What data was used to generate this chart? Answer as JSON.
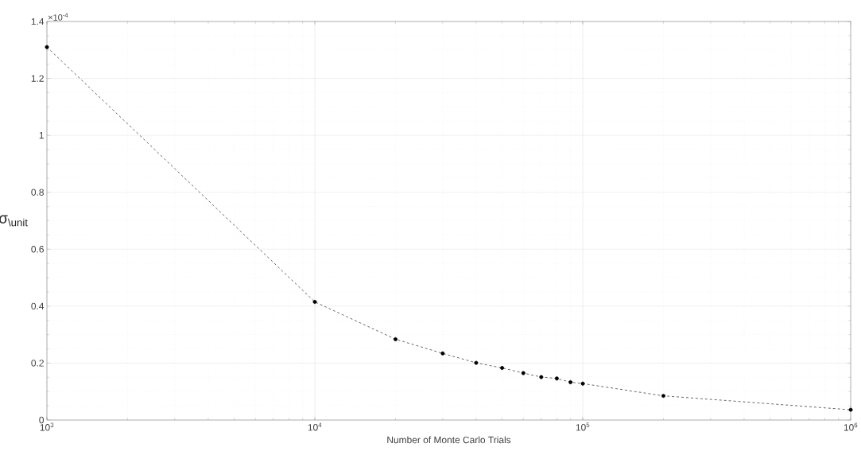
{
  "chart_data": {
    "type": "line",
    "xlabel": "Number of Monte Carlo Trials",
    "ylabel": "σ$_{\\unit}$",
    "annotations": [
      "×10$^{-4}$"
    ],
    "x": [
      1000,
      10000,
      20000,
      30000,
      40000,
      50000,
      60000,
      70000,
      80000,
      90000,
      100000,
      200000,
      1000000
    ],
    "series": [
      {
        "color": "#000000",
        "values": [
          1.31,
          0.415,
          0.284,
          0.234,
          0.201,
          0.183,
          0.165,
          0.151,
          0.146,
          0.133,
          0.128,
          0.085,
          0.036
        ]
      }
    ],
    "log": "x",
    "grid": true,
    "marker": "circle",
    "line_style": "dashed",
    "xlim": [
      1000,
      1000000
    ],
    "ylim": [
      0,
      1.4
    ],
    "xticks": [
      {
        "value": 1000,
        "label": "10$^{3}$"
      },
      {
        "value": 10000,
        "label": "10$^{4}$"
      },
      {
        "value": 100000,
        "label": "10$^{5}$"
      },
      {
        "value": 1000000,
        "label": "10$^{6}$"
      }
    ],
    "yticks": [
      0,
      0.2,
      0.4,
      0.6,
      0.8,
      1,
      1.2,
      1.4
    ]
  }
}
